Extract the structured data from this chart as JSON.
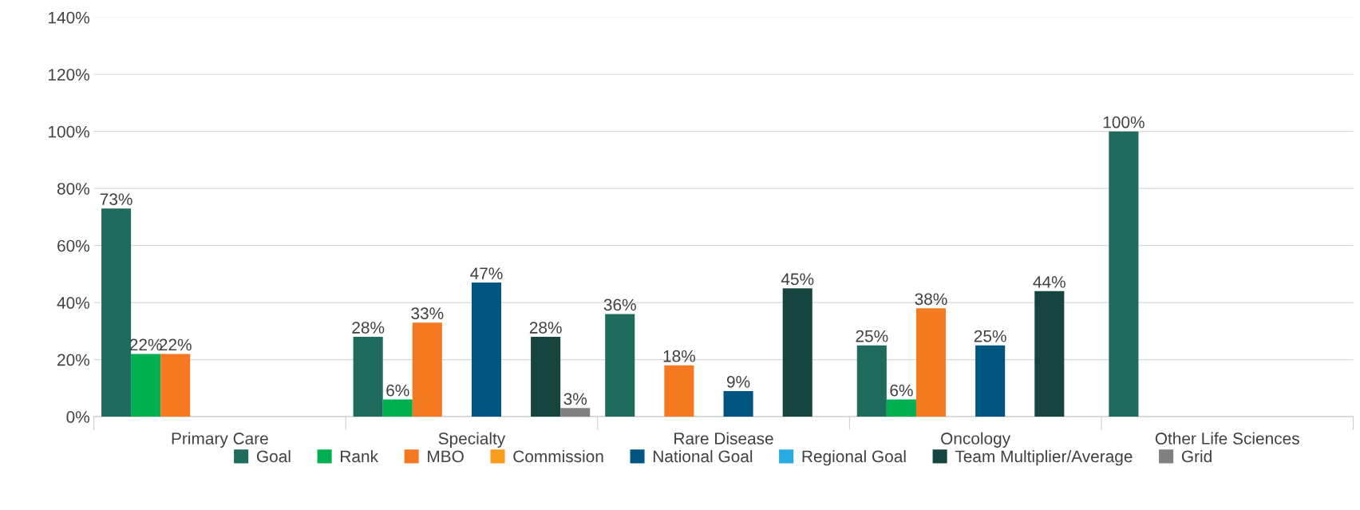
{
  "chart_data": {
    "type": "bar",
    "categories": [
      "Primary Care",
      "Specialty",
      "Rare Disease",
      "Oncology",
      "Other Life Sciences"
    ],
    "series": [
      {
        "name": "Goal",
        "color": "#1f6b5e",
        "values": [
          73,
          28,
          36,
          25,
          100
        ],
        "value_labels": [
          "73%",
          "28%",
          "36%",
          "25%",
          "100%"
        ]
      },
      {
        "name": "Rank",
        "color": "#00b050",
        "values": [
          22,
          6,
          null,
          6,
          null
        ],
        "value_labels": [
          "22%",
          "6%",
          null,
          "6%",
          null
        ]
      },
      {
        "name": "MBO",
        "color": "#f47920",
        "values": [
          22,
          33,
          18,
          38,
          null
        ],
        "value_labels": [
          "22%",
          "33%",
          "18%",
          "38%",
          null
        ]
      },
      {
        "name": "Commission",
        "color": "#f99d1c",
        "values": [
          null,
          null,
          null,
          null,
          null
        ]
      },
      {
        "name": "National Goal",
        "color": "#005581",
        "values": [
          null,
          47,
          9,
          25,
          null
        ],
        "value_labels": [
          null,
          "47%",
          "9%",
          "25%",
          null
        ]
      },
      {
        "name": "Regional Goal",
        "color": "#29abe2",
        "values": [
          null,
          null,
          null,
          null,
          null
        ]
      },
      {
        "name": "Team Multiplier/Average",
        "color": "#16443e",
        "values": [
          null,
          28,
          45,
          44,
          null
        ],
        "value_labels": [
          null,
          "28%",
          "45%",
          "44%",
          null
        ]
      },
      {
        "name": "Grid",
        "color": "#808080",
        "values": [
          null,
          3,
          null,
          null,
          null
        ],
        "value_labels": [
          null,
          "3%",
          null,
          null,
          null
        ]
      }
    ],
    "ylim": [
      0,
      140
    ],
    "yticks": [
      {
        "value": 0,
        "label": "0%"
      },
      {
        "value": 20,
        "label": "20%"
      },
      {
        "value": 40,
        "label": "40%"
      },
      {
        "value": 60,
        "label": "60%"
      },
      {
        "value": 80,
        "label": "80%"
      },
      {
        "value": 100,
        "label": "100%"
      },
      {
        "value": 120,
        "label": "120%"
      },
      {
        "value": 140,
        "label": "140%"
      }
    ],
    "grid": "y",
    "legend": "bottom"
  }
}
